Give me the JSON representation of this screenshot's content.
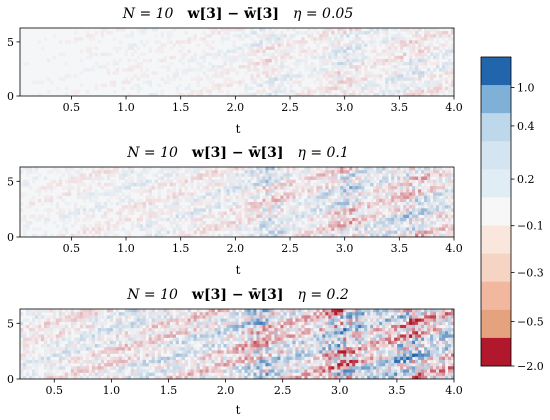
{
  "chart_data": {
    "type": "heatmap",
    "panels": [
      {
        "title": {
          "n": "N = 10",
          "expr": "w[3] − w̄[3]",
          "eta": "η = 0.05"
        },
        "xlabel": "t",
        "xlim": [
          0.03,
          4.0
        ],
        "xticks": [
          "0.5",
          "1.0",
          "1.5",
          "2.0",
          "2.5",
          "3.0",
          "3.5",
          "4.0"
        ],
        "xtick_values": [
          0.5,
          1.0,
          1.5,
          2.0,
          2.5,
          3.0,
          3.5,
          4.0
        ],
        "ylim": [
          0,
          6.283
        ],
        "yticks": [
          "0",
          "5"
        ],
        "ytick_values": [
          0,
          5
        ],
        "intensity": 0.05
      },
      {
        "title": {
          "n": "N = 10",
          "expr": "w[3] − w̄[3]",
          "eta": "η = 0.1"
        },
        "xlabel": "t",
        "xlim": [
          0.03,
          4.0
        ],
        "xticks": [
          "0.5",
          "1.0",
          "1.5",
          "2.0",
          "2.5",
          "3.0",
          "3.5",
          "4.0"
        ],
        "xtick_values": [
          0.5,
          1.0,
          1.5,
          2.0,
          2.5,
          3.0,
          3.5,
          4.0
        ],
        "ylim": [
          0,
          6.283
        ],
        "yticks": [
          "0",
          "5"
        ],
        "ytick_values": [
          0,
          5
        ],
        "intensity": 0.1
      },
      {
        "title": {
          "n": "N = 10",
          "expr": "w[3] − w̄[3]",
          "eta": "η = 0.2"
        },
        "xlabel": "t",
        "xlim": [
          0.2,
          4.0
        ],
        "xticks": [
          "0.5",
          "1.0",
          "1.5",
          "2.0",
          "2.5",
          "3.0",
          "3.5",
          "4.0"
        ],
        "xtick_values": [
          0.5,
          1.0,
          1.5,
          2.0,
          2.5,
          3.0,
          3.5,
          4.0
        ],
        "ylim": [
          0,
          6.283
        ],
        "yticks": [
          "0",
          "5"
        ],
        "ytick_values": [
          0,
          5
        ],
        "intensity": 0.2
      }
    ],
    "colorbar": {
      "tick_labels": [
        "1.0",
        "0.4",
        "0.2",
        "−0.1",
        "−0.3",
        "−0.5",
        "−2.0"
      ],
      "bins": [
        "#2166ac",
        "#7fb0d8",
        "#bed8eb",
        "#d4e5f1",
        "#e0edf5",
        "#f7f7f7",
        "#f9e6dc",
        "#f6d4c3",
        "#f2b79f",
        "#e4a37e",
        "#b2182b"
      ]
    }
  }
}
